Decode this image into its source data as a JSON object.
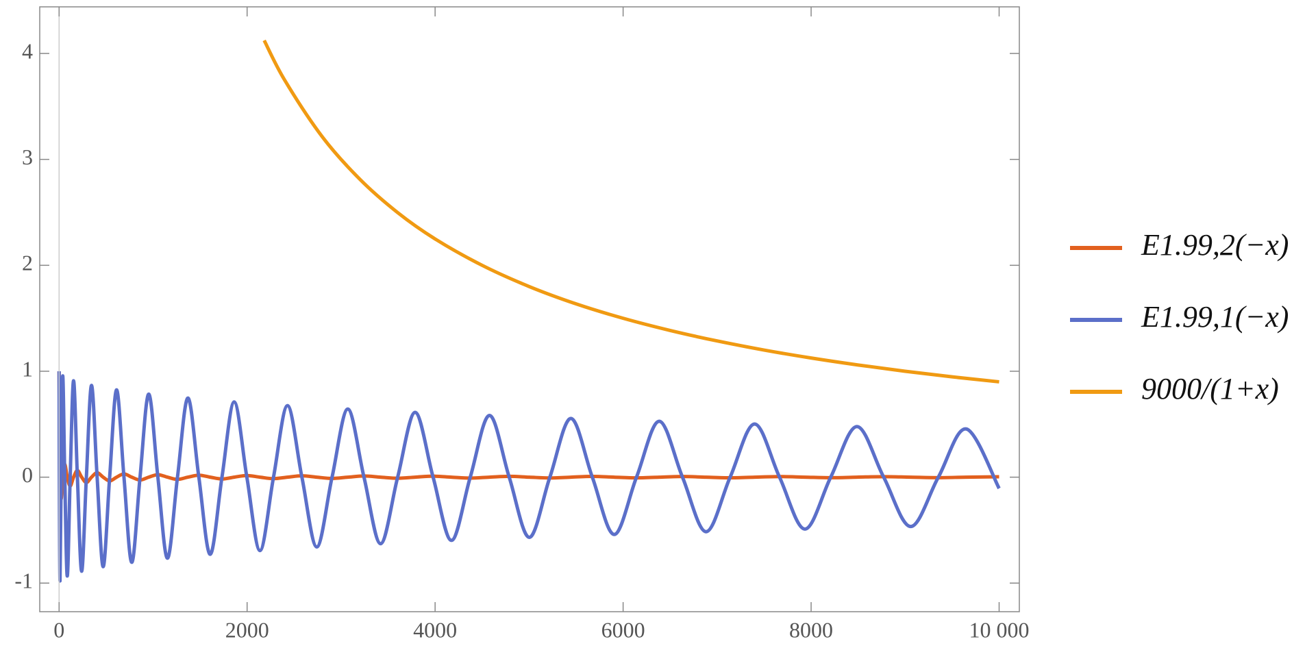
{
  "chart_data": {
    "type": "line",
    "x": [
      0,
      2.46,
      9.76,
      21.87,
      38.76,
      60.43,
      86.86,
      118.0,
      154.0,
      194.7,
      240.0,
      290.2,
      345.0,
      404.6,
      468.9,
      537.9,
      611.7,
      690.1,
      773.1,
      861.0,
      953.5,
      1050.7,
      1152.6,
      1259.3,
      1370.5,
      1486.6,
      1607.3,
      1732.6,
      1862.6,
      1997.3,
      2136.8,
      2280.9,
      2429.6,
      2583.0,
      2741.1,
      2903.8,
      3071.2,
      3243.4,
      3420.0,
      3601.7,
      3787.5,
      3978.5,
      4174.0,
      4373.8,
      4578.7,
      4788.2,
      5002.3,
      5220.9,
      5444.4,
      5672.4,
      5905.1,
      6142.5,
      6384.2,
      6631.5,
      6882.6,
      7138.5,
      7398.9,
      7663.8,
      7934.3,
      8208.5,
      8487.4,
      8771.8,
      9059.7,
      9353.4,
      9650.7,
      10000
    ],
    "series": [
      {
        "name": "E1.99,2(−x)",
        "color": "#e2601e",
        "values": [
          1,
          0.632,
          0,
          -0.205,
          0,
          0.12,
          0,
          -0.0838,
          0,
          0.0636,
          0,
          -0.0508,
          0,
          0.0419,
          0,
          -0.0354,
          0,
          0.0305,
          0,
          -0.0266,
          0,
          0.0235,
          0,
          -0.0209,
          0,
          0.0188,
          0,
          -0.017,
          0,
          0.0154,
          0,
          -0.014,
          0,
          0.0129,
          0,
          -0.0118,
          0,
          0.0109,
          0,
          -0.0101,
          0,
          0.0094,
          0,
          -0.0087,
          0,
          0.0081,
          0,
          -0.0076,
          0,
          0.0071,
          0,
          -0.0067,
          0,
          0.0063,
          0,
          -0.0059,
          0,
          0.0055,
          0,
          -0.0052,
          0,
          0.0049,
          0,
          -0.0046,
          0,
          0.004
        ]
      },
      {
        "name": "E1.99,1(−x)",
        "color": "#5b6fc9",
        "values": [
          1,
          0,
          -0.98,
          0,
          0.956,
          0,
          -0.933,
          0,
          0.91,
          0,
          -0.888,
          0,
          0.866,
          0,
          -0.845,
          0,
          0.824,
          0,
          -0.804,
          0,
          0.784,
          0,
          -0.765,
          0,
          0.747,
          0,
          -0.728,
          0,
          0.71,
          0,
          -0.693,
          0,
          0.676,
          0,
          -0.659,
          0,
          0.643,
          0,
          -0.628,
          0,
          0.612,
          0,
          -0.597,
          0,
          0.583,
          0,
          -0.568,
          0,
          0.554,
          0,
          -0.541,
          0,
          0.528,
          0,
          -0.515,
          0,
          0.502,
          0,
          -0.49,
          0,
          0.478,
          0,
          -0.466,
          0,
          0.455,
          -0.106
        ]
      },
      {
        "name": "9000/(1+x)",
        "color": "#f09a12",
        "x": [
          2182,
          2400,
          2800,
          3200,
          3600,
          4000,
          4500,
          5000,
          5500,
          6000,
          6500,
          7000,
          7500,
          8000,
          8500,
          9000,
          9500,
          10000
        ],
        "values": [
          4.123,
          3.748,
          3.213,
          2.812,
          2.499,
          2.249,
          2.0,
          1.8,
          1.636,
          1.5,
          1.385,
          1.286,
          1.2,
          1.125,
          1.059,
          1.0,
          0.947,
          0.9
        ]
      }
    ],
    "xlim": [
      -206,
      10215
    ],
    "ylim": [
      -1.27,
      4.44
    ],
    "xticks": [
      0,
      2000,
      4000,
      6000,
      8000,
      {
        "value": 10000,
        "label": "10 000"
      }
    ],
    "yticks": [
      -1,
      0,
      1,
      2,
      3,
      4
    ],
    "legend": "right"
  }
}
